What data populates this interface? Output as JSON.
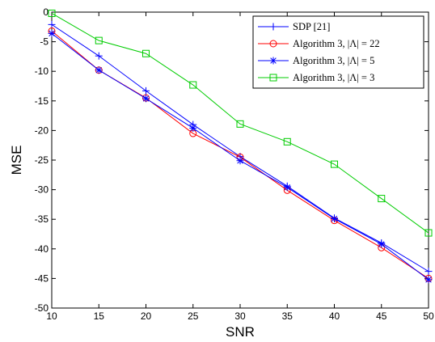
{
  "chart_data": {
    "type": "line",
    "xlabel": "SNR",
    "ylabel": "MSE",
    "xlim": [
      10,
      50
    ],
    "ylim": [
      -50,
      0
    ],
    "xticks": [
      10,
      15,
      20,
      25,
      30,
      35,
      40,
      45,
      50
    ],
    "yticks": [
      0,
      -5,
      -10,
      -15,
      -20,
      -25,
      -30,
      -35,
      -40,
      -45,
      -50
    ],
    "x": [
      10,
      15,
      20,
      25,
      30,
      35,
      40,
      45,
      50
    ],
    "grid": false,
    "legend_position": "top-right",
    "series": [
      {
        "name": "SDP [21]",
        "color": "#0000ff",
        "marker": "plus",
        "values": [
          -2.1,
          -7.4,
          -13.3,
          -19.0,
          -24.4,
          -29.4,
          -34.8,
          -39.0,
          -43.8
        ]
      },
      {
        "name": "Algorithm 3, |Λ| = 22",
        "color": "#ff0000",
        "marker": "circle",
        "values": [
          -3.2,
          -9.8,
          -14.5,
          -20.5,
          -24.5,
          -30.1,
          -35.2,
          -39.8,
          -45.0
        ]
      },
      {
        "name": "Algorithm 3, |Λ| = 5",
        "color": "#0000ff",
        "marker": "star",
        "values": [
          -3.6,
          -9.8,
          -14.6,
          -19.6,
          -25.1,
          -29.6,
          -34.9,
          -39.2,
          -45.2
        ]
      },
      {
        "name": "Algorithm 3, |Λ| = 3",
        "color": "#00cc00",
        "marker": "square",
        "values": [
          -0.2,
          -4.8,
          -7.0,
          -12.3,
          -18.9,
          -21.9,
          -25.7,
          -31.5,
          -37.3
        ]
      }
    ]
  }
}
